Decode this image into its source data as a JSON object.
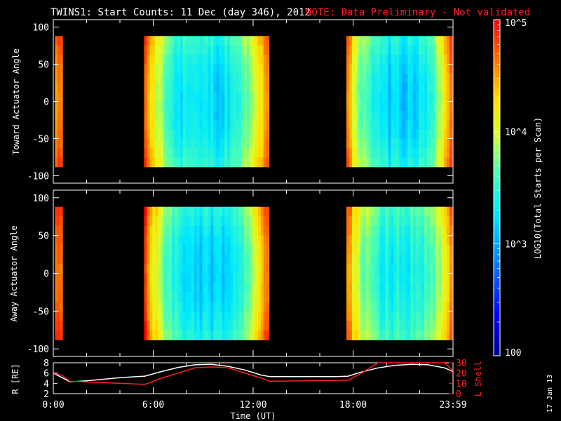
{
  "header": {
    "title": "TWINS1: Start Counts: 11 Dec (day 346), 2012",
    "note": "NOTE: Data Preliminary - Not validated"
  },
  "colorbar": {
    "label": "LOG10(Total Starts per Scan)",
    "tick_labels": [
      "10^5",
      "10^4",
      "10^3",
      "100"
    ],
    "log_range": [
      2,
      5
    ]
  },
  "footer": {
    "xlabel": "Time (UT)",
    "date_stamp": "17 Jan 13"
  },
  "colors": {
    "background": "#000000",
    "axes": "#ffffff",
    "note": "#ff2020",
    "lshell": "#ff2020",
    "r_line": "#ffffff"
  },
  "chart_data": [
    {
      "type": "heatmap",
      "name": "toward",
      "ylabel": "Toward Actuator Angle",
      "ylim": [
        -110,
        110
      ],
      "yticks": [
        100,
        50,
        0,
        -50,
        -100
      ],
      "xlim": [
        0,
        24
      ],
      "value": "log10 counts",
      "segments": [
        {
          "start": 0.1,
          "end": 0.55,
          "base": 4.55,
          "mid": 4.55,
          "edge": 4.7
        },
        {
          "start": 5.45,
          "end": 12.95,
          "base": 3.85,
          "mid": 3.2,
          "edge": 4.75
        },
        {
          "start": 17.6,
          "end": 23.95,
          "base": 3.95,
          "mid": 3.15,
          "edge": 4.6
        }
      ],
      "angle_range": [
        -88,
        88
      ]
    },
    {
      "type": "heatmap",
      "name": "away",
      "ylabel": "Away Actuator Angle",
      "ylim": [
        -110,
        110
      ],
      "yticks": [
        100,
        50,
        0,
        -50,
        -100
      ],
      "xlim": [
        0,
        24
      ],
      "value": "log10 counts",
      "segments": [
        {
          "start": 0.1,
          "end": 0.55,
          "base": 4.75,
          "mid": 4.7,
          "edge": 4.85
        },
        {
          "start": 5.45,
          "end": 12.95,
          "base": 4.0,
          "mid": 3.15,
          "edge": 4.8
        },
        {
          "start": 17.6,
          "end": 23.95,
          "base": 4.2,
          "mid": 3.35,
          "edge": 4.6
        }
      ],
      "angle_range": [
        -88,
        88
      ]
    },
    {
      "type": "line",
      "name": "orbit",
      "ylabel_left": "R [RE]",
      "ylabel_right": "L Shell",
      "yticks_left": [
        2,
        4,
        6,
        8
      ],
      "ylim_left": [
        2,
        8
      ],
      "yticks_right": [
        0,
        10,
        20,
        30
      ],
      "ylim_right": [
        0,
        30
      ],
      "xticks": [
        "0:00",
        "6:00",
        "12:00",
        "18:00",
        "23:59"
      ],
      "xlim": [
        0,
        24
      ],
      "series": [
        {
          "name": "R",
          "x": [
            0,
            1,
            2,
            3,
            4,
            5,
            5.5,
            6.5,
            7.5,
            8.5,
            9.5,
            10.5,
            11.5,
            12.5,
            13,
            14,
            15,
            16,
            17,
            17.7,
            18.5,
            19.5,
            20.5,
            21.5,
            22.5,
            23.5,
            24
          ],
          "y": [
            6.0,
            4.3,
            4.5,
            4.8,
            5.1,
            5.3,
            5.4,
            6.3,
            7.1,
            7.6,
            7.7,
            7.3,
            6.6,
            5.6,
            5.3,
            5.3,
            5.3,
            5.3,
            5.3,
            5.4,
            6.2,
            7.0,
            7.5,
            7.7,
            7.6,
            7.0,
            6.3
          ]
        },
        {
          "name": "L Shell",
          "x": [
            0,
            0.5,
            1,
            5.5,
            6.5,
            8.5,
            9.5,
            10.5,
            12.5,
            13,
            17.7,
            18.5,
            19.5,
            20,
            22,
            23.5,
            24
          ],
          "y": [
            20,
            18,
            12,
            9,
            15,
            25,
            26,
            25,
            15,
            12,
            13,
            20,
            30,
            32,
            32,
            30,
            22
          ]
        }
      ]
    }
  ]
}
